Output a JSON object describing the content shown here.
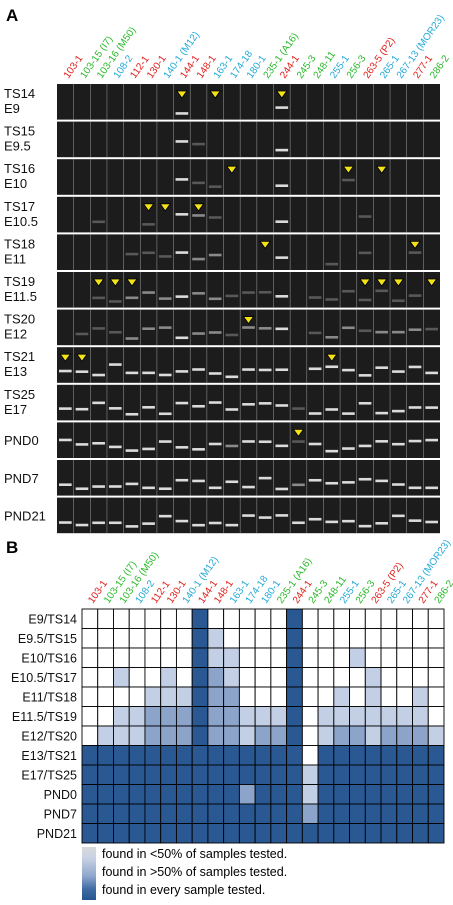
{
  "figure": {
    "panel_a_letter": "A",
    "panel_b_letter": "B",
    "columns": [
      {
        "label": "103-1",
        "color": "#e0201b"
      },
      {
        "label": "103-15 (I7)",
        "color": "#2ab92a"
      },
      {
        "label": "103-16 (M50)",
        "color": "#2ab92a"
      },
      {
        "label": "108-2",
        "color": "#23a9d6"
      },
      {
        "label": "112-1",
        "color": "#e0201b"
      },
      {
        "label": "130-1",
        "color": "#e0201b"
      },
      {
        "label": "140-1 (M12)",
        "color": "#23a9d6"
      },
      {
        "label": "144-1",
        "color": "#e0201b"
      },
      {
        "label": "148-1",
        "color": "#e0201b"
      },
      {
        "label": "163-1",
        "color": "#23a9d6"
      },
      {
        "label": "174-18",
        "color": "#23a9d6"
      },
      {
        "label": "180-1",
        "color": "#23a9d6"
      },
      {
        "label": "235-1 (A16)",
        "color": "#2ab92a"
      },
      {
        "label": "244-1",
        "color": "#e0201b"
      },
      {
        "label": "245-3",
        "color": "#2ab92a"
      },
      {
        "label": "248-11",
        "color": "#2ab92a"
      },
      {
        "label": "255-1",
        "color": "#23a9d6"
      },
      {
        "label": "256-3",
        "color": "#2ab92a"
      },
      {
        "label": "263-5 (P2)",
        "color": "#e0201b"
      },
      {
        "label": "265-1",
        "color": "#23a9d6"
      },
      {
        "label": "267-13 (MOR23)",
        "color": "#23a9d6"
      },
      {
        "label": "277-1",
        "color": "#e0201b"
      },
      {
        "label": "286-2",
        "color": "#2ab92a"
      }
    ],
    "gel_rows": [
      {
        "line1": "TS14",
        "line2": "E9"
      },
      {
        "line1": "TS15",
        "line2": "E9.5"
      },
      {
        "line1": "TS16",
        "line2": "E10"
      },
      {
        "line1": "TS17",
        "line2": "E10.5"
      },
      {
        "line1": "TS18",
        "line2": "E11"
      },
      {
        "line1": "TS19",
        "line2": "E11.5"
      },
      {
        "line1": "TS20",
        "line2": "E12"
      },
      {
        "line1": "TS21",
        "line2": "E13"
      },
      {
        "line1": "TS25",
        "line2": "E17"
      },
      {
        "line1": "PND0",
        "line2": ""
      },
      {
        "line1": "PND7",
        "line2": ""
      },
      {
        "line1": "PND21",
        "line2": ""
      }
    ],
    "heat_rows": [
      "E9/TS14",
      "E9.5/TS15",
      "E10/TS16",
      "E10.5/TS17",
      "E11/TS18",
      "E11.5/TS19",
      "E12/TS20",
      "E13/TS21",
      "E17/TS25",
      "PND0",
      "PND7",
      "PND21"
    ],
    "heat_levels": [
      [
        0,
        0,
        0,
        0,
        0,
        0,
        0,
        3,
        0,
        0,
        0,
        0,
        0,
        3,
        0,
        0,
        0,
        0,
        0,
        0,
        0,
        0,
        0
      ],
      [
        0,
        0,
        0,
        0,
        0,
        0,
        0,
        3,
        1,
        0,
        0,
        0,
        0,
        3,
        0,
        0,
        0,
        0,
        0,
        0,
        0,
        0,
        0
      ],
      [
        0,
        0,
        0,
        0,
        0,
        0,
        0,
        3,
        1,
        1,
        0,
        0,
        0,
        3,
        0,
        0,
        0,
        1,
        0,
        0,
        0,
        0,
        0
      ],
      [
        0,
        0,
        1,
        0,
        0,
        1,
        0,
        3,
        2,
        1,
        0,
        0,
        0,
        3,
        0,
        0,
        0,
        0,
        1,
        0,
        0,
        0,
        0
      ],
      [
        0,
        0,
        0,
        0,
        1,
        1,
        1,
        3,
        2,
        2,
        0,
        0,
        0,
        3,
        0,
        0,
        1,
        0,
        1,
        0,
        0,
        1,
        0
      ],
      [
        0,
        0,
        1,
        1,
        2,
        2,
        2,
        3,
        2,
        2,
        1,
        1,
        1,
        3,
        0,
        1,
        1,
        1,
        1,
        1,
        1,
        1,
        0
      ],
      [
        0,
        1,
        1,
        1,
        2,
        2,
        2,
        3,
        2,
        2,
        1,
        2,
        2,
        3,
        0,
        1,
        2,
        2,
        1,
        2,
        2,
        2,
        1
      ],
      [
        3,
        3,
        3,
        3,
        3,
        3,
        3,
        3,
        3,
        3,
        3,
        3,
        3,
        3,
        0,
        3,
        3,
        3,
        3,
        3,
        3,
        3,
        3
      ],
      [
        3,
        3,
        3,
        3,
        3,
        3,
        3,
        3,
        3,
        3,
        3,
        3,
        3,
        3,
        1,
        3,
        3,
        3,
        3,
        3,
        3,
        3,
        3
      ],
      [
        3,
        3,
        3,
        3,
        3,
        3,
        3,
        3,
        3,
        3,
        2,
        3,
        3,
        3,
        1,
        3,
        3,
        3,
        3,
        3,
        3,
        3,
        3
      ],
      [
        3,
        3,
        3,
        3,
        3,
        3,
        3,
        3,
        3,
        3,
        3,
        3,
        3,
        3,
        2,
        3,
        3,
        3,
        3,
        3,
        3,
        3,
        3
      ],
      [
        3,
        3,
        3,
        3,
        3,
        3,
        3,
        3,
        3,
        3,
        3,
        3,
        3,
        3,
        3,
        3,
        3,
        3,
        3,
        3,
        3,
        3,
        3
      ]
    ],
    "arrowheads": [
      {
        "row": 0,
        "col": 7
      },
      {
        "row": 0,
        "col": 9
      },
      {
        "row": 0,
        "col": 13
      },
      {
        "row": 2,
        "col": 10
      },
      {
        "row": 2,
        "col": 17
      },
      {
        "row": 2,
        "col": 19
      },
      {
        "row": 3,
        "col": 5
      },
      {
        "row": 3,
        "col": 6
      },
      {
        "row": 3,
        "col": 8
      },
      {
        "row": 4,
        "col": 12
      },
      {
        "row": 4,
        "col": 21
      },
      {
        "row": 5,
        "col": 2
      },
      {
        "row": 5,
        "col": 3
      },
      {
        "row": 5,
        "col": 4
      },
      {
        "row": 5,
        "col": 18
      },
      {
        "row": 5,
        "col": 20
      },
      {
        "row": 5,
        "col": 22
      },
      {
        "row": 5,
        "col": 19
      },
      {
        "row": 6,
        "col": 11
      },
      {
        "row": 7,
        "col": 0
      },
      {
        "row": 7,
        "col": 1
      },
      {
        "row": 7,
        "col": 16
      },
      {
        "row": 9,
        "col": 14
      }
    ],
    "palette": {
      "level0": "#ffffff",
      "level1": "#c3cfe5",
      "level2": "#8ca4ca",
      "level3": "#2a5892",
      "grid": "#000000",
      "gel": "#1c1c1c",
      "band": "#e6e6e6",
      "arrow": "#f3e21a"
    },
    "legend": {
      "low": "found in <50% of samples tested.",
      "mid": "found in >50% of samples tested.",
      "high": "found in every sample tested."
    }
  }
}
